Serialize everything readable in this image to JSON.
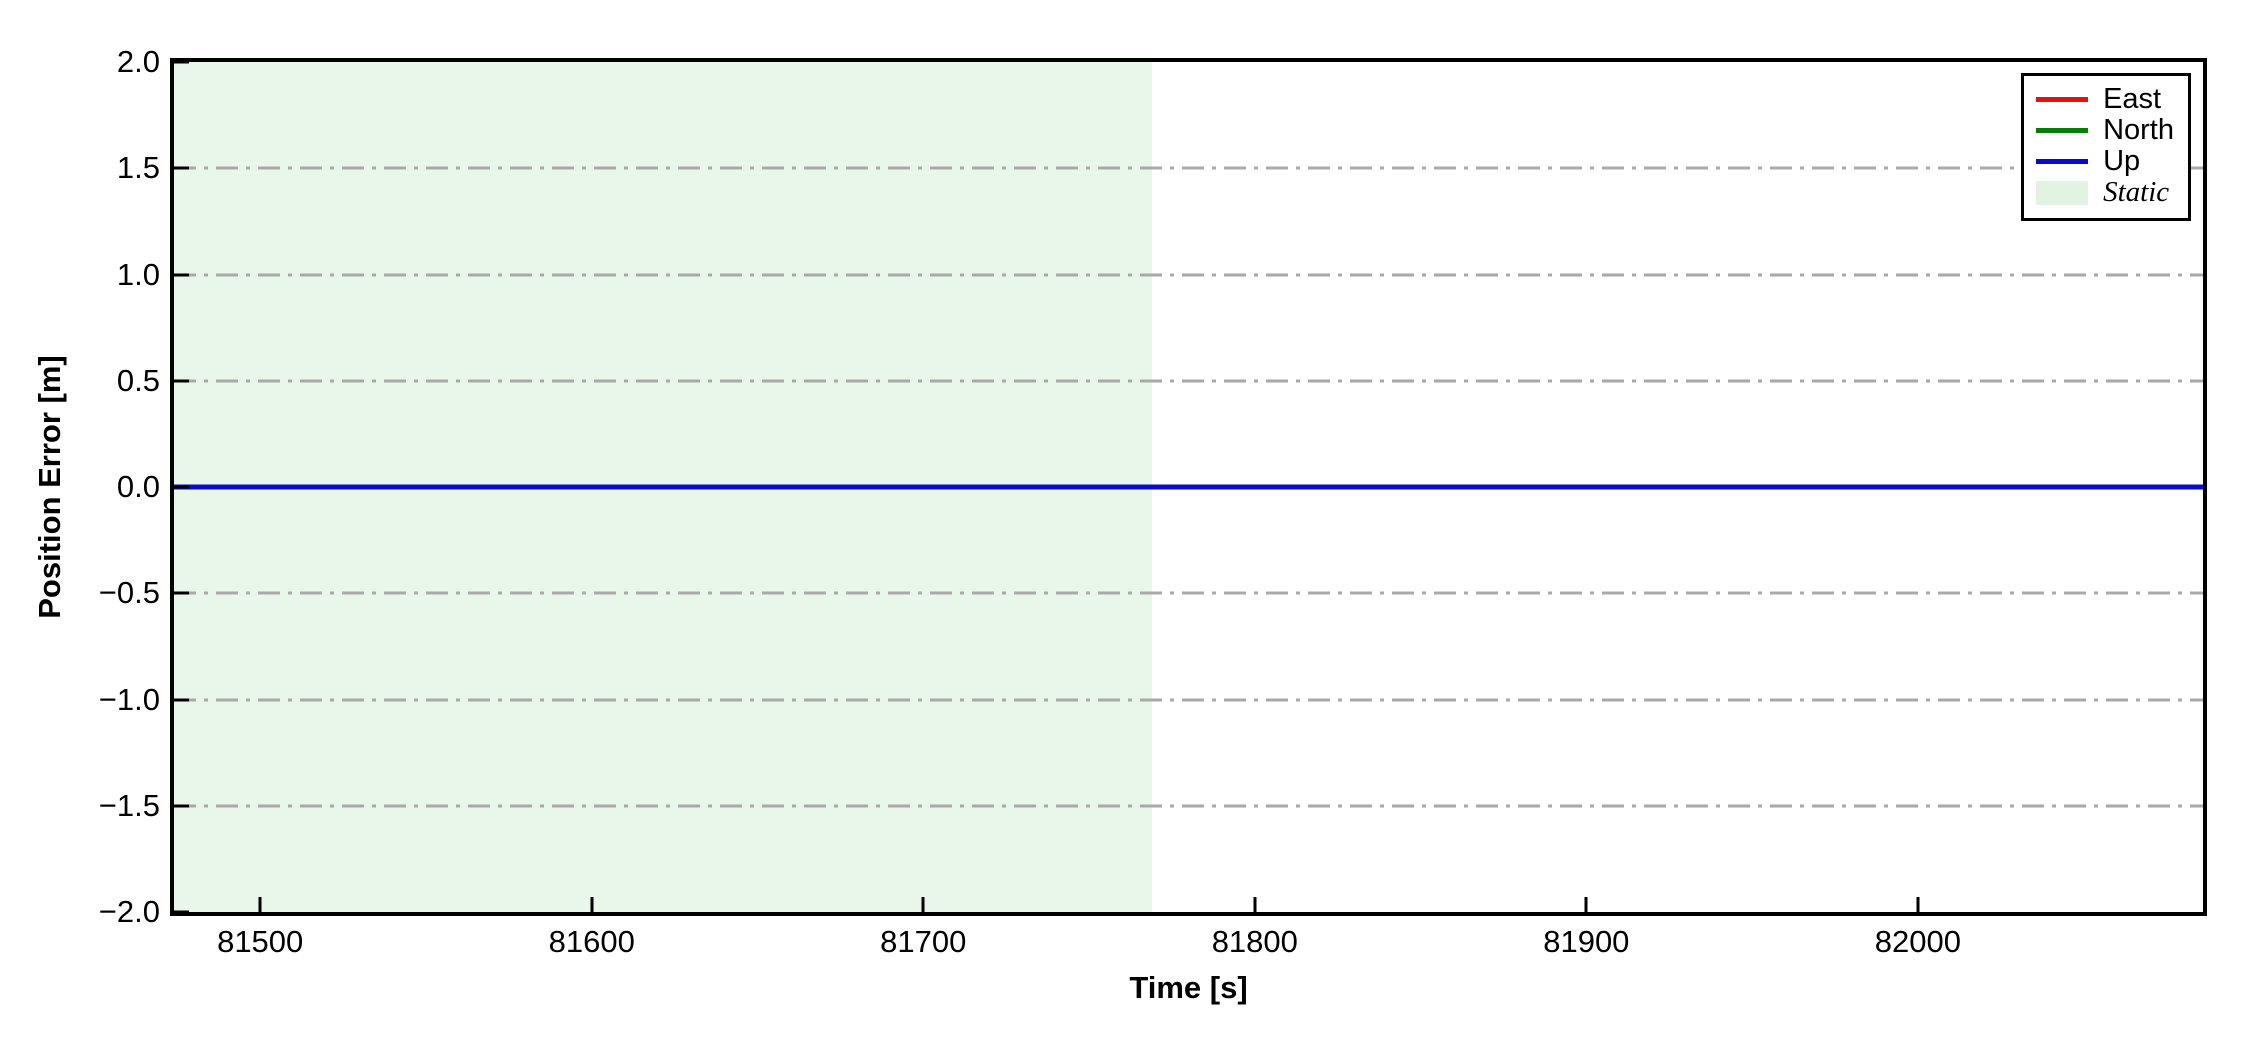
{
  "chart_data": {
    "type": "line",
    "title": "",
    "xlabel": "Time [s]",
    "ylabel": "Position Error [m]",
    "xlim": [
      81474,
      82086
    ],
    "ylim": [
      -2.0,
      2.0
    ],
    "grid": "horizontal, dash-dot, gray",
    "grid_color": "#a9a9a9",
    "x_ticks": [
      81500,
      81600,
      81700,
      81800,
      81900,
      82000
    ],
    "x_tick_labels": [
      "81500",
      "81600",
      "81700",
      "81800",
      "81900",
      "82000"
    ],
    "y_ticks": [
      2.0,
      1.5,
      1.0,
      0.5,
      0.0,
      -0.5,
      -1.0,
      -1.5,
      -2.0
    ],
    "y_tick_labels": [
      "2.0",
      "1.5",
      "1.0",
      "0.5",
      "0.0",
      "−0.5",
      "−1.0",
      "−1.5",
      "−2.0"
    ],
    "grid_y_values": [
      1.5,
      1.0,
      0.5,
      0.0,
      -0.5,
      -1.0,
      -1.5
    ],
    "series": [
      {
        "name": "East",
        "color": "#dc1414",
        "x": [
          81474,
          82086
        ],
        "values": [
          0.0,
          0.0
        ]
      },
      {
        "name": "North",
        "color": "#067d06",
        "x": [
          81474,
          82086
        ],
        "values": [
          0.0,
          0.0
        ]
      },
      {
        "name": "Up",
        "color": "#0a0acd",
        "x": [
          81474,
          82086
        ],
        "values": [
          0.0,
          0.0
        ]
      }
    ],
    "regions": [
      {
        "name": "Static",
        "x_start": 81474,
        "x_end": 81769,
        "color": "#e8f7ea"
      }
    ],
    "legend_position": "upper right",
    "legend": {
      "items": [
        {
          "label": "East",
          "swatch": "line",
          "color": "#dc1414",
          "italic": false
        },
        {
          "label": "North",
          "swatch": "line",
          "color": "#067d06",
          "italic": false
        },
        {
          "label": "Up",
          "swatch": "line",
          "color": "#0a0acd",
          "italic": false
        },
        {
          "label": "Static",
          "swatch": "patch",
          "color": "#e2f3e2",
          "italic": true
        }
      ]
    }
  }
}
